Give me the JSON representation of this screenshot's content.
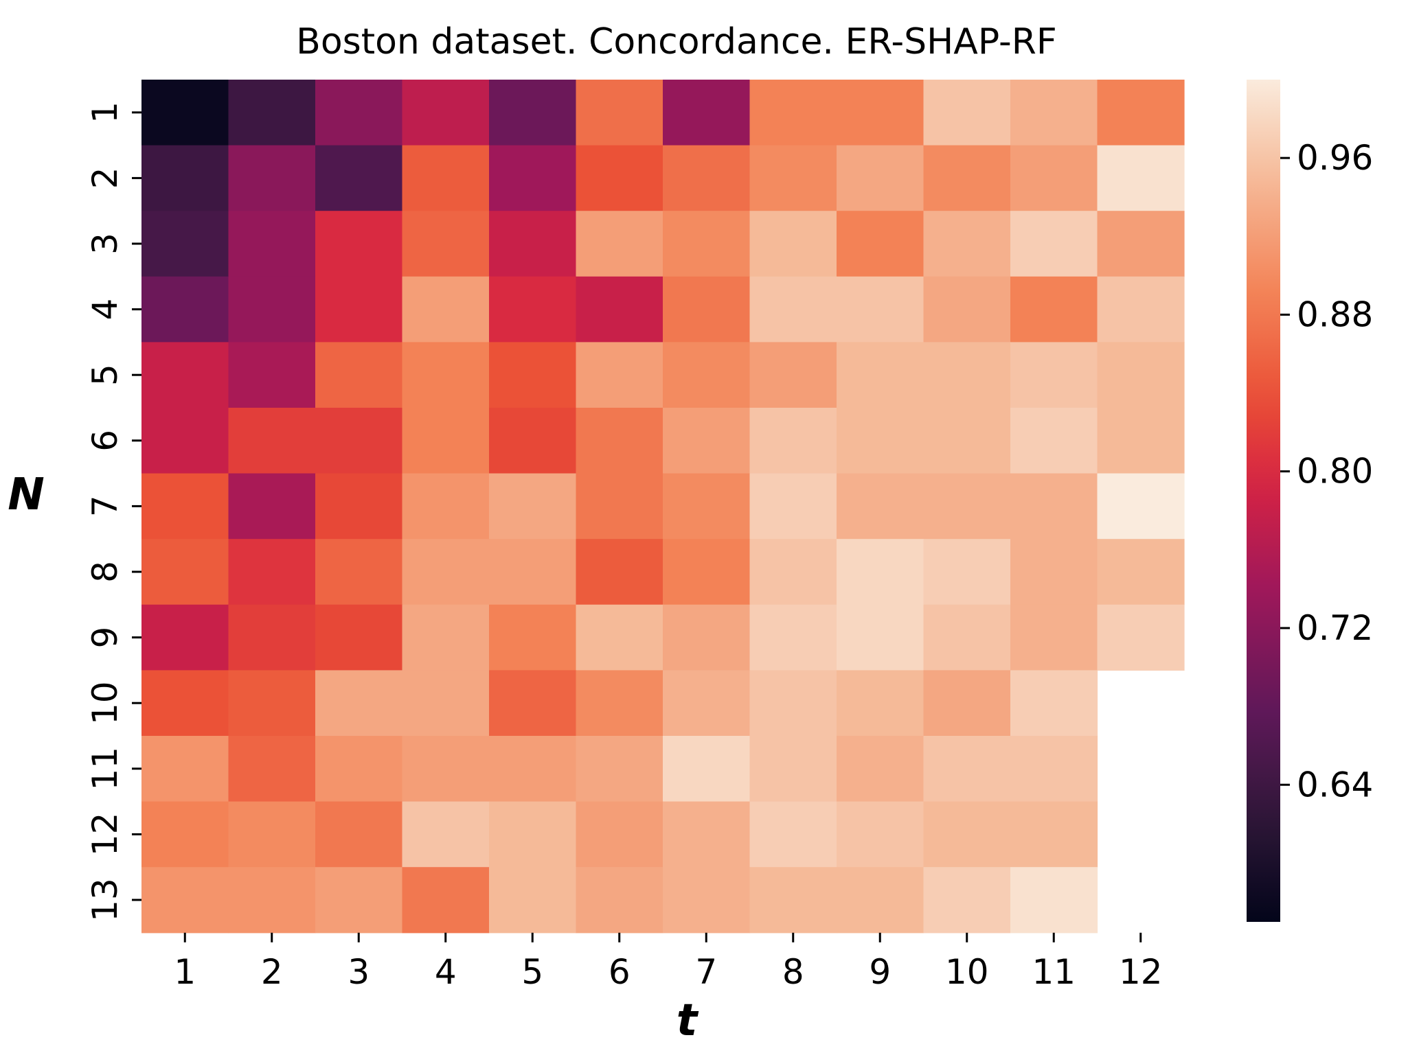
{
  "chart_data": {
    "type": "heatmap",
    "title": "Boston dataset. Concordance. ER-SHAP-RF",
    "xlabel": "t",
    "ylabel": "N",
    "x_categories": [
      "1",
      "2",
      "3",
      "4",
      "5",
      "6",
      "7",
      "8",
      "9",
      "10",
      "11",
      "12"
    ],
    "y_categories": [
      "1",
      "2",
      "3",
      "4",
      "5",
      "6",
      "7",
      "8",
      "9",
      "10",
      "11",
      "12",
      "13"
    ],
    "values": [
      [
        0.58,
        0.64,
        0.72,
        0.77,
        0.69,
        0.87,
        0.73,
        0.89,
        0.89,
        0.96,
        0.94,
        0.89
      ],
      [
        0.64,
        0.72,
        0.66,
        0.85,
        0.74,
        0.84,
        0.87,
        0.9,
        0.93,
        0.9,
        0.92,
        0.99
      ],
      [
        0.65,
        0.73,
        0.8,
        0.86,
        0.78,
        0.92,
        0.9,
        0.95,
        0.89,
        0.94,
        0.97,
        0.92
      ],
      [
        0.69,
        0.73,
        0.8,
        0.92,
        0.8,
        0.78,
        0.88,
        0.96,
        0.96,
        0.93,
        0.89,
        0.96
      ],
      [
        0.78,
        0.75,
        0.86,
        0.89,
        0.84,
        0.92,
        0.9,
        0.92,
        0.95,
        0.95,
        0.96,
        0.95
      ],
      [
        0.78,
        0.82,
        0.82,
        0.89,
        0.83,
        0.88,
        0.92,
        0.96,
        0.95,
        0.95,
        0.97,
        0.95
      ],
      [
        0.84,
        0.75,
        0.83,
        0.91,
        0.93,
        0.88,
        0.9,
        0.97,
        0.94,
        0.94,
        0.94,
        1.0
      ],
      [
        0.85,
        0.81,
        0.86,
        0.92,
        0.92,
        0.85,
        0.89,
        0.96,
        0.98,
        0.97,
        0.94,
        0.95
      ],
      [
        0.78,
        0.82,
        0.83,
        0.93,
        0.89,
        0.95,
        0.93,
        0.97,
        0.98,
        0.96,
        0.94,
        0.97
      ],
      [
        0.84,
        0.85,
        0.93,
        0.93,
        0.86,
        0.9,
        0.94,
        0.96,
        0.95,
        0.93,
        0.97,
        null
      ],
      [
        0.91,
        0.86,
        0.91,
        0.92,
        0.92,
        0.93,
        0.98,
        0.96,
        0.94,
        0.96,
        0.96,
        null
      ],
      [
        0.89,
        0.9,
        0.88,
        0.96,
        0.95,
        0.92,
        0.94,
        0.97,
        0.96,
        0.95,
        0.95,
        null
      ],
      [
        0.91,
        0.91,
        0.92,
        0.88,
        0.95,
        0.93,
        0.94,
        0.95,
        0.95,
        0.97,
        0.99,
        null
      ]
    ],
    "colorbar": {
      "vmin": 0.57,
      "vmax": 1.0,
      "ticks": [
        0.64,
        0.72,
        0.8,
        0.88,
        0.96
      ],
      "tick_labels": [
        "0.64",
        "0.72",
        "0.80",
        "0.88",
        "0.96"
      ]
    },
    "colormap": "rocket",
    "grid": false
  }
}
